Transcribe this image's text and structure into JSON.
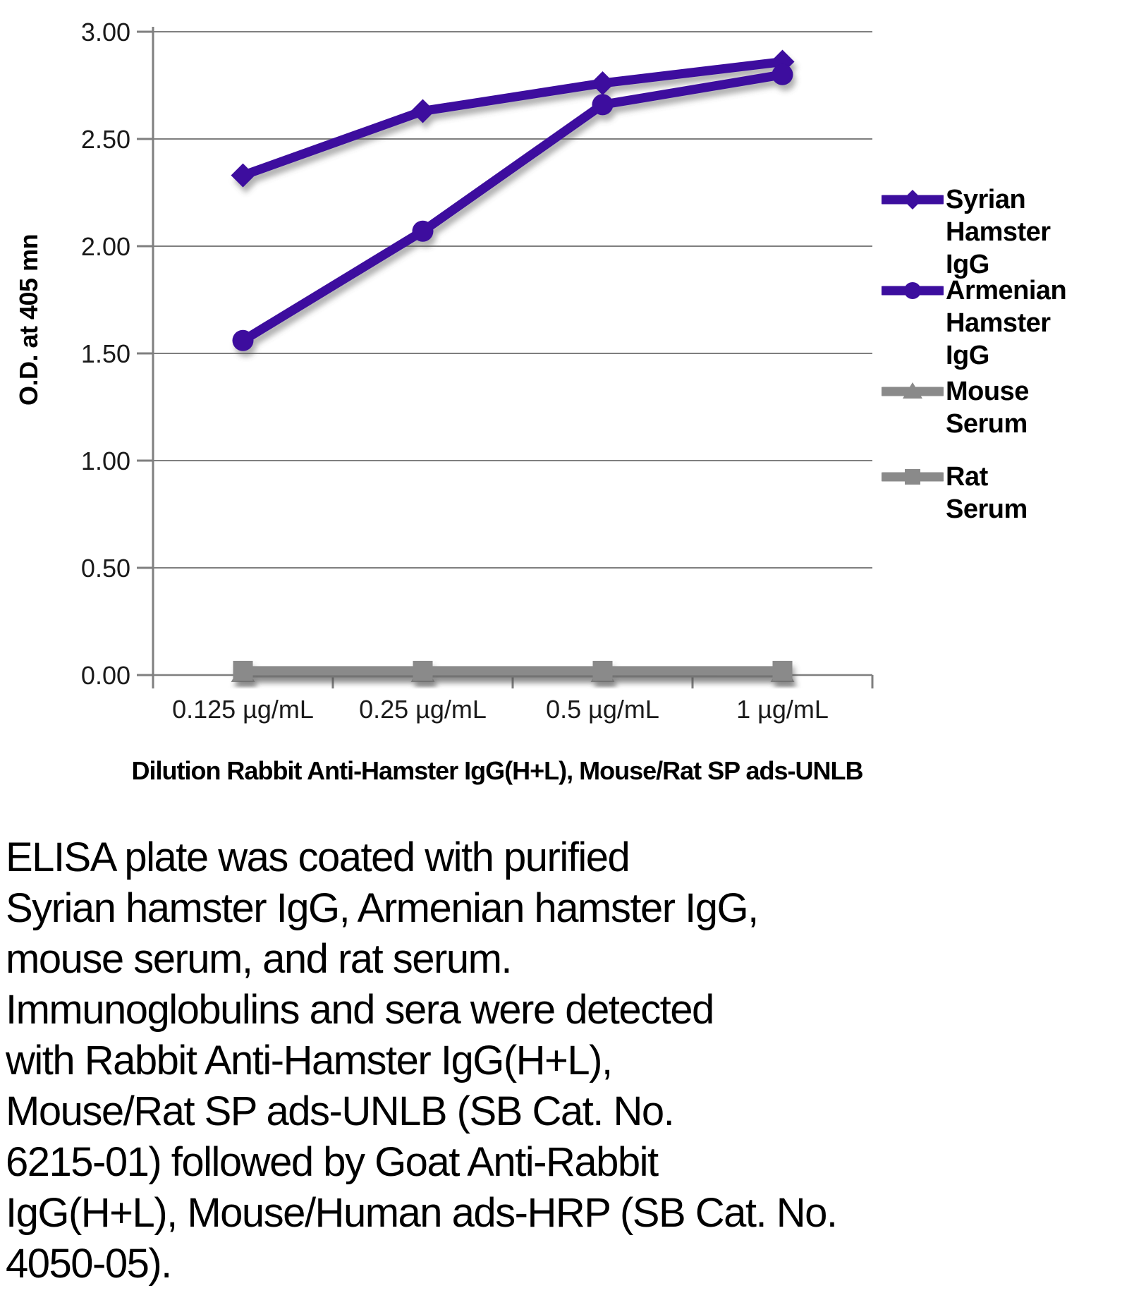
{
  "figure": {
    "y_axis_title": "O.D. at 405 mn",
    "x_axis_title": "Dilution Rabbit Anti-Hamster IgG(H+L), Mouse/Rat SP ads-UNLB",
    "caption": "ELISA plate was coated with purified\nSyrian hamster IgG, Armenian hamster IgG,\nmouse serum, and rat serum.\nImmunoglobulins and sera were detected\nwith Rabbit Anti-Hamster IgG(H+L),\nMouse/Rat SP ads-UNLB (SB Cat. No.\n6215-01) followed by Goat Anti-Rabbit\nIgG(H+L), Mouse/Human ads-HRP (SB Cat. No.\n4050-05)."
  },
  "colors": {
    "purple": "#3C0E9E",
    "gray_series": "#8A8A8A",
    "gridline": "#7F7F7F",
    "text": "#000000"
  },
  "chart_data": {
    "type": "line",
    "title": "",
    "xlabel": "Dilution Rabbit Anti-Hamster IgG(H+L), Mouse/Rat SP ads-UNLB",
    "ylabel": "O.D. at 405 mn",
    "categories": [
      "0.125 µg/mL",
      "0.25 µg/mL",
      "0.5 µg/mL",
      "1 µg/mL"
    ],
    "series": [
      {
        "name": "Syrian Hamster IgG",
        "legend_label": "Syrian\nHamster IgG",
        "marker": "diamond",
        "color": "#3C0E9E",
        "values": [
          2.33,
          2.63,
          2.76,
          2.86
        ]
      },
      {
        "name": "Armenian Hamster IgG",
        "legend_label": "Armenian\nHamster IgG",
        "marker": "circle",
        "color": "#3C0E9E",
        "values": [
          1.56,
          2.07,
          2.66,
          2.8
        ]
      },
      {
        "name": "Mouse Serum",
        "legend_label": "Mouse Serum",
        "marker": "triangle",
        "color": "#8A8A8A",
        "values": [
          0.01,
          0.01,
          0.01,
          0.01
        ]
      },
      {
        "name": "Rat Serum",
        "legend_label": "Rat Serum",
        "marker": "square",
        "color": "#8A8A8A",
        "values": [
          0.02,
          0.02,
          0.02,
          0.02
        ]
      }
    ],
    "ylim": [
      0,
      3.0
    ],
    "ytick_step": 0.5,
    "ytick_labels": [
      "0.00",
      "0.50",
      "1.00",
      "1.50",
      "2.00",
      "2.50",
      "3.00"
    ],
    "grid": true,
    "legend_position": "right"
  }
}
